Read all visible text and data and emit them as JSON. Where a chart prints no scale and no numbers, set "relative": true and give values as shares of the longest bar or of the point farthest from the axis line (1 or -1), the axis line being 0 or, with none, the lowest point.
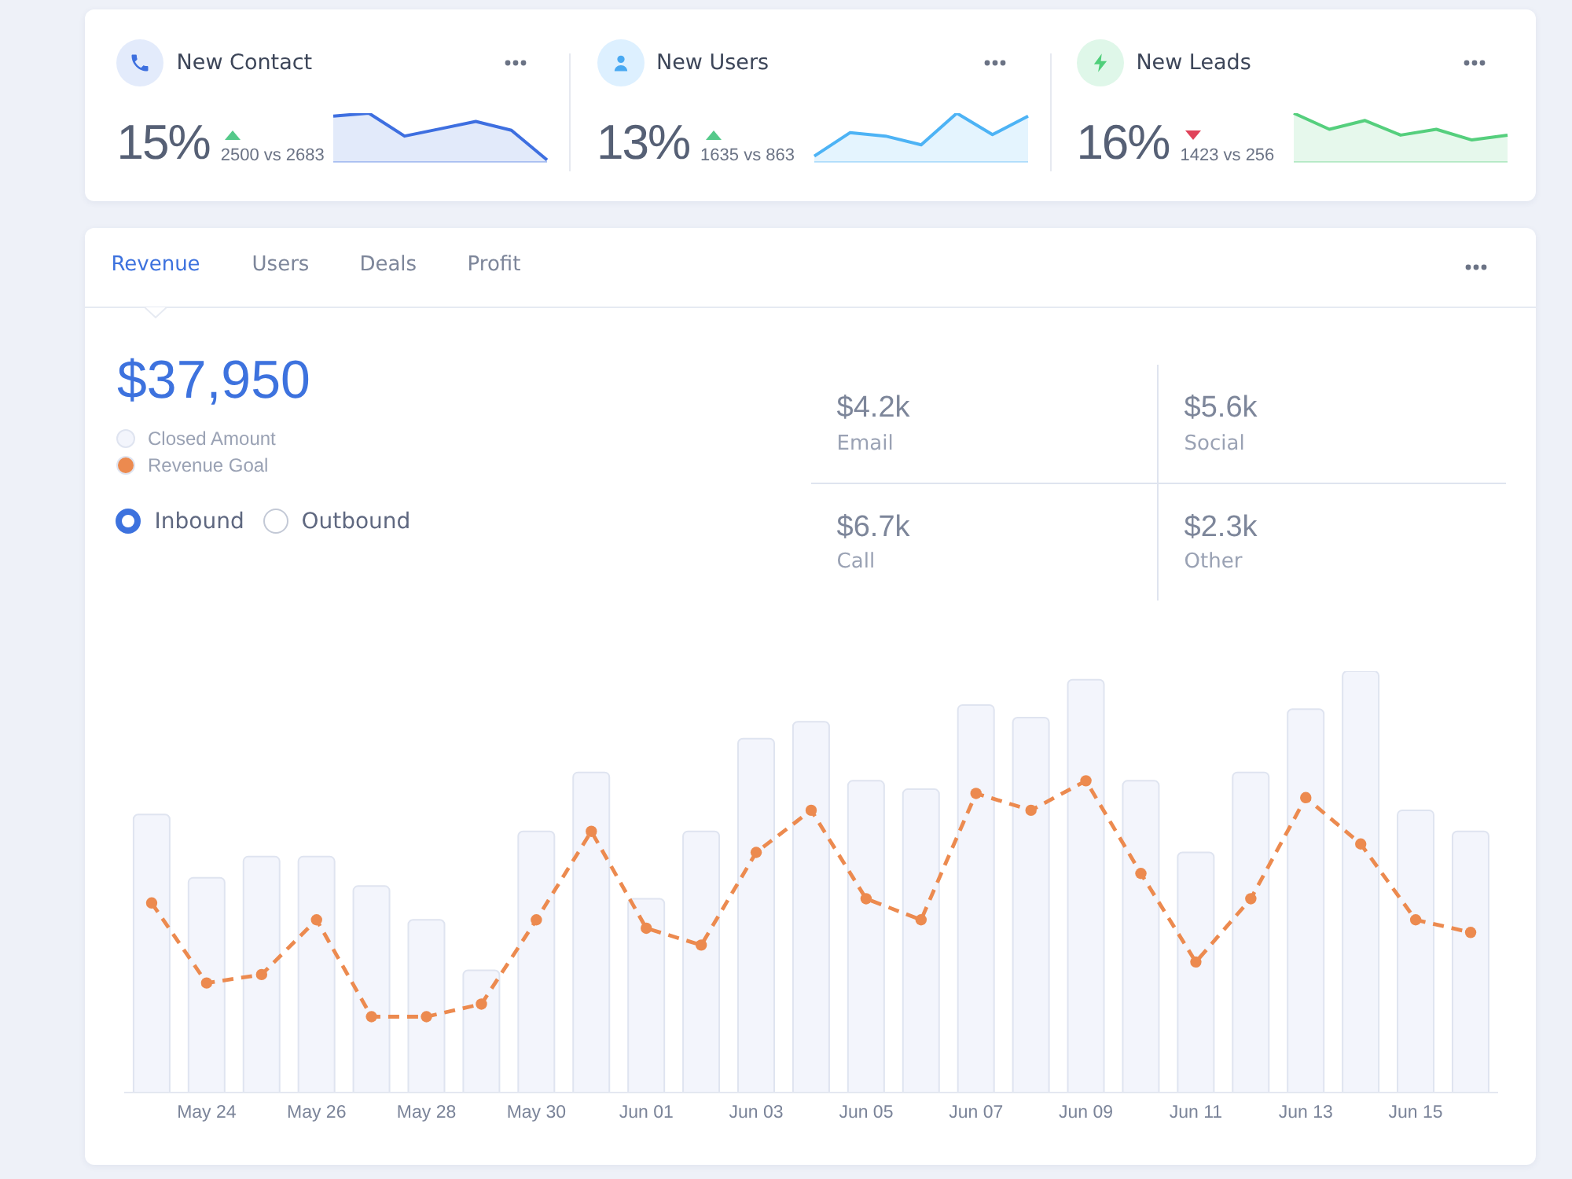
{
  "chart_data": [
    {
      "type": "other",
      "title": "New Contact",
      "annotations": [
        "15%",
        "2500 vs 2683"
      ]
    },
    {
      "type": "area",
      "relative": true,
      "categories": [
        null,
        null,
        null,
        null,
        null,
        null,
        null
      ],
      "values": [
        0.94,
        1,
        0.53,
        0.68,
        0.83,
        0.65,
        0.04
      ],
      "color": "#3e6fe0"
    },
    {
      "type": "other",
      "title": "New Users",
      "annotations": [
        "13%",
        "1635 vs 863"
      ]
    },
    {
      "type": "area",
      "relative": true,
      "categories": [
        null,
        null,
        null,
        null,
        null,
        null,
        null
      ],
      "values": [
        0.12,
        0.6,
        0.53,
        0.35,
        1,
        0.56,
        0.94
      ],
      "color": "#4db3f5"
    },
    {
      "type": "other",
      "title": "New Leads",
      "annotations": [
        "16%",
        "1423 vs 256"
      ]
    },
    {
      "type": "area",
      "relative": true,
      "categories": [
        null,
        null,
        null,
        null,
        null,
        null,
        null
      ],
      "values": [
        1,
        0.67,
        0.85,
        0.55,
        0.67,
        0.45,
        0.55
      ],
      "color": "#55cf7d"
    },
    {
      "type": "bar",
      "relative": true,
      "legend": "top left",
      "marker": "circle",
      "line_style": "dashed",
      "categories": [
        null,
        "May 24",
        null,
        "May 26",
        null,
        "May 28",
        null,
        "May 30",
        null,
        "Jun 01",
        null,
        "Jun 03",
        null,
        "Jun 05",
        null,
        "Jun 07",
        null,
        "Jun 09",
        null,
        "Jun 11",
        null,
        "Jun 13",
        null,
        "Jun 15",
        null
      ],
      "series": [
        {
          "name": "Closed Amount",
          "type": "bar",
          "color": "#f3f5fc",
          "values": [
            0.66,
            0.51,
            0.56,
            0.56,
            0.49,
            0.41,
            0.29,
            0.62,
            0.76,
            0.46,
            0.62,
            0.84,
            0.88,
            0.74,
            0.72,
            0.92,
            0.89,
            0.98,
            0.74,
            0.57,
            0.76,
            0.91,
            1,
            0.67,
            0.62
          ]
        },
        {
          "name": "Revenue Goal",
          "type": "line",
          "color": "#ec8a4f",
          "values": [
            0.45,
            0.26,
            0.28,
            0.41,
            0.18,
            0.18,
            0.21,
            0.41,
            0.62,
            0.39,
            0.35,
            0.57,
            0.67,
            0.46,
            0.41,
            0.71,
            0.67,
            0.74,
            0.52,
            0.31,
            0.46,
            0.7,
            0.59,
            0.41,
            0.38
          ]
        }
      ],
      "annotations": [
        "Revenue",
        "Users",
        "Deals",
        "Profit",
        "Inbound",
        "Outbound"
      ]
    },
    {
      "type": "other",
      "annotations": [
        "$37,950"
      ]
    },
    {
      "type": "other",
      "annotations": [
        "$4.2k",
        "Email",
        "$5.6k",
        "Social",
        "$6.7k",
        "Call",
        "$2.3k",
        "Other"
      ]
    }
  ]
}
